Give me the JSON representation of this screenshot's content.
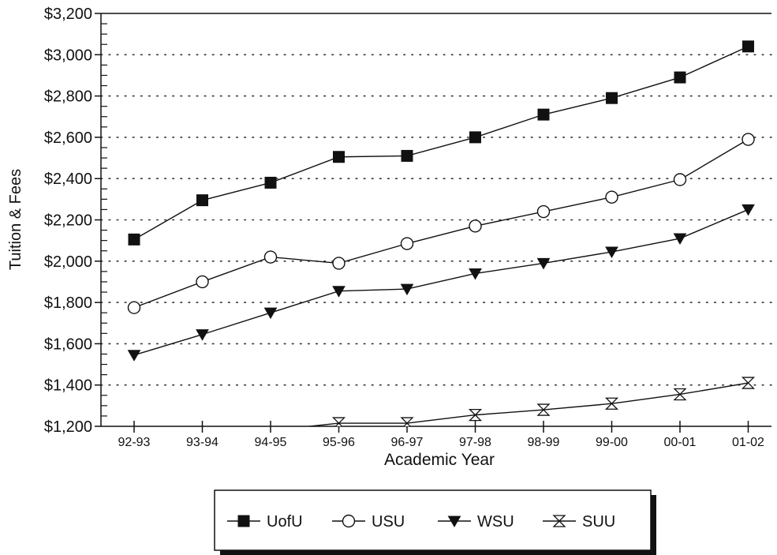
{
  "chart_data": {
    "type": "line",
    "title": "",
    "xlabel": "Academic Year",
    "ylabel": "Tuition & Fees",
    "categories": [
      "92-93",
      "93-94",
      "94-95",
      "95-96",
      "96-97",
      "97-98",
      "98-99",
      "99-00",
      "00-01",
      "01-02"
    ],
    "ylim": [
      1200,
      3200
    ],
    "y_ticks": [
      {
        "value": 1200,
        "label": "$1,200"
      },
      {
        "value": 1400,
        "label": "$1,400"
      },
      {
        "value": 1600,
        "label": "$1,600"
      },
      {
        "value": 1800,
        "label": "$1,800"
      },
      {
        "value": 2000,
        "label": "$2,000"
      },
      {
        "value": 2200,
        "label": "$2,200"
      },
      {
        "value": 2400,
        "label": "$2,400"
      },
      {
        "value": 2600,
        "label": "$2,600"
      },
      {
        "value": 2800,
        "label": "$2,800"
      },
      {
        "value": 3000,
        "label": "$3,000"
      },
      {
        "value": 3200,
        "label": "$3,200"
      }
    ],
    "grid": "horizontal-dotted",
    "legend_position": "bottom-center",
    "series": [
      {
        "name": "UofU",
        "marker": "filled-square",
        "values": [
          2105,
          2295,
          2380,
          2505,
          2510,
          2600,
          2710,
          2790,
          2890,
          3040
        ]
      },
      {
        "name": "USU",
        "marker": "open-circle",
        "values": [
          1775,
          1900,
          2020,
          1990,
          2085,
          2170,
          2240,
          2310,
          2395,
          2590
        ]
      },
      {
        "name": "WSU",
        "marker": "filled-down-triangle",
        "values": [
          1545,
          1645,
          1750,
          1855,
          1865,
          1940,
          1990,
          2045,
          2110,
          2250
        ]
      },
      {
        "name": "SUU",
        "marker": "hourglass",
        "values": [
          1140,
          1165,
          1180,
          1215,
          1215,
          1255,
          1280,
          1310,
          1355,
          1410
        ]
      }
    ],
    "colors": {
      "line": "#111111",
      "grid": "#333333"
    }
  }
}
